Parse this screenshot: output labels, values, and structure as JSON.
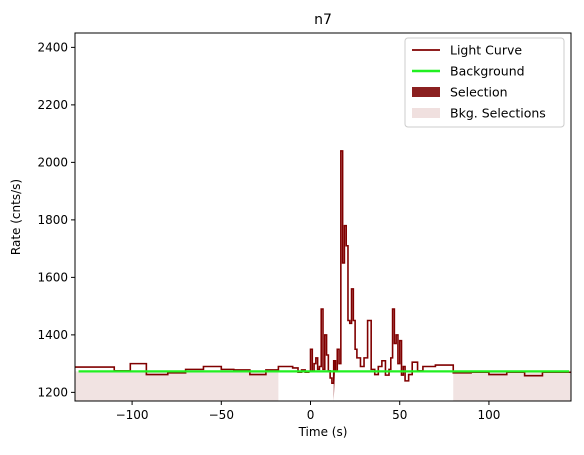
{
  "chart_data": {
    "type": "line",
    "title": "n7",
    "xlabel": "Time (s)",
    "ylabel": "Rate (cnts/s)",
    "xlim": [
      -132,
      146
    ],
    "ylim": [
      1170,
      2450
    ],
    "xticks": [
      -100,
      -50,
      0,
      50,
      100
    ],
    "xtick_labels": [
      "−100",
      "−50",
      "0",
      "50",
      "100"
    ],
    "yticks": [
      1200,
      1400,
      1600,
      1800,
      2000,
      2200,
      2400
    ],
    "ytick_labels": [
      "1200",
      "1400",
      "1600",
      "1800",
      "2000",
      "2200",
      "2400"
    ],
    "grid": false,
    "legend_position": "top-right",
    "colors": {
      "light_curve": "#800000",
      "background": "#21f021",
      "selection": "#8b2020",
      "bkg_selection": "#f0e0df"
    },
    "legend": [
      {
        "label": "Light Curve",
        "kind": "line",
        "color": "#800000"
      },
      {
        "label": "Background",
        "kind": "line",
        "color": "#21f021"
      },
      {
        "label": "Selection",
        "kind": "patch",
        "color": "#8b2020"
      },
      {
        "label": "Bkg. Selections",
        "kind": "patch",
        "color": "#f0e0df"
      }
    ],
    "bkg_selections": [
      [
        -132,
        -18
      ],
      [
        80,
        146
      ]
    ],
    "selection": [
      13,
      24
    ],
    "background": {
      "x": [
        -130,
        145
      ],
      "y": [
        1273,
        1273
      ]
    },
    "light_curve_edges": [
      -132,
      -110,
      -101,
      -92,
      -80,
      -70,
      -60,
      -50,
      -43,
      -34,
      -25,
      -18,
      -10,
      -7,
      -5,
      -3,
      -1,
      0,
      1,
      2,
      3,
      4,
      5,
      6,
      7,
      8,
      9,
      10,
      11,
      12,
      13,
      14,
      15,
      16,
      17,
      18,
      19,
      20,
      21,
      22,
      23,
      24,
      25,
      26,
      28,
      30,
      32,
      34,
      36,
      38,
      40,
      42,
      44,
      45,
      46,
      47,
      48,
      49,
      50,
      51,
      52,
      53,
      55,
      57,
      60,
      63,
      70,
      80,
      90,
      100,
      110,
      120,
      130,
      146
    ],
    "light_curve_values": [
      1288,
      1275,
      1300,
      1262,
      1268,
      1280,
      1290,
      1280,
      1278,
      1262,
      1278,
      1290,
      1285,
      1270,
      1278,
      1270,
      1272,
      1350,
      1272,
      1300,
      1320,
      1280,
      1290,
      1490,
      1280,
      1400,
      1330,
      1275,
      1250,
      1232,
      1310,
      1275,
      1350,
      1300,
      2040,
      1650,
      1780,
      1710,
      1450,
      1440,
      1560,
      1450,
      1350,
      1320,
      1290,
      1320,
      1450,
      1280,
      1262,
      1290,
      1310,
      1260,
      1280,
      1320,
      1490,
      1370,
      1400,
      1300,
      1380,
      1260,
      1290,
      1240,
      1262,
      1305,
      1275,
      1290,
      1295,
      1268,
      1270,
      1262,
      1270,
      1258,
      1270
    ]
  }
}
